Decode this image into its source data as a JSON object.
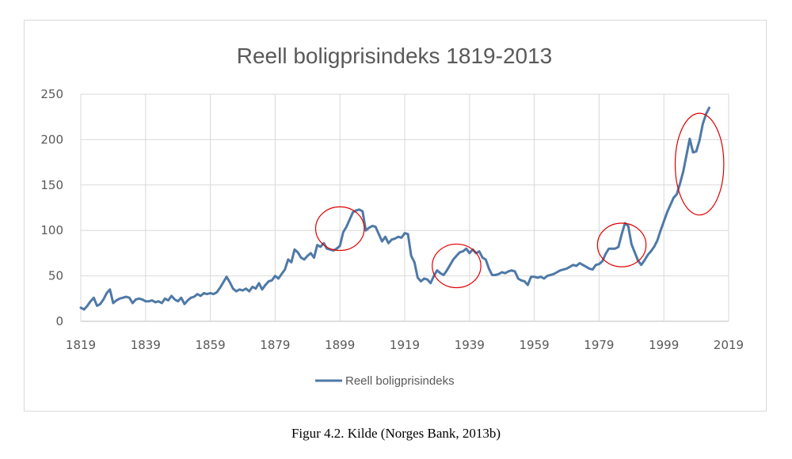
{
  "chart_data": {
    "type": "line",
    "title": "Reell boligprisindeks 1819-2013",
    "xlabel": "",
    "ylabel": "",
    "xlim": [
      1819,
      2019
    ],
    "ylim": [
      0,
      250
    ],
    "x_ticks": [
      "1819",
      "1839",
      "1859",
      "1879",
      "1899",
      "1919",
      "1939",
      "1959",
      "1979",
      "1999",
      "2019"
    ],
    "y_ticks": [
      "0",
      "50",
      "100",
      "150",
      "200",
      "250"
    ],
    "grid": true,
    "legend_position": "bottom",
    "series": [
      {
        "name": "Reell boligprisindeks",
        "color": "#4e79a7",
        "points": [
          [
            1819,
            15
          ],
          [
            1820,
            13
          ],
          [
            1821,
            17
          ],
          [
            1822,
            22
          ],
          [
            1823,
            26
          ],
          [
            1824,
            17
          ],
          [
            1825,
            19
          ],
          [
            1826,
            24
          ],
          [
            1827,
            31
          ],
          [
            1828,
            35
          ],
          [
            1829,
            20
          ],
          [
            1830,
            23
          ],
          [
            1831,
            25
          ],
          [
            1832,
            26
          ],
          [
            1833,
            27
          ],
          [
            1834,
            26
          ],
          [
            1835,
            20
          ],
          [
            1836,
            24
          ],
          [
            1837,
            25
          ],
          [
            1838,
            24
          ],
          [
            1839,
            22
          ],
          [
            1840,
            22
          ],
          [
            1841,
            23
          ],
          [
            1842,
            21
          ],
          [
            1843,
            22
          ],
          [
            1844,
            20
          ],
          [
            1845,
            25
          ],
          [
            1846,
            23
          ],
          [
            1847,
            28
          ],
          [
            1848,
            24
          ],
          [
            1849,
            22
          ],
          [
            1850,
            26
          ],
          [
            1851,
            19
          ],
          [
            1852,
            23
          ],
          [
            1853,
            26
          ],
          [
            1854,
            27
          ],
          [
            1855,
            30
          ],
          [
            1856,
            28
          ],
          [
            1857,
            31
          ],
          [
            1858,
            30
          ],
          [
            1859,
            31
          ],
          [
            1860,
            30
          ],
          [
            1861,
            32
          ],
          [
            1862,
            37
          ],
          [
            1863,
            43
          ],
          [
            1864,
            49
          ],
          [
            1865,
            43
          ],
          [
            1866,
            36
          ],
          [
            1867,
            33
          ],
          [
            1868,
            35
          ],
          [
            1869,
            34
          ],
          [
            1870,
            36
          ],
          [
            1871,
            33
          ],
          [
            1872,
            38
          ],
          [
            1873,
            36
          ],
          [
            1874,
            42
          ],
          [
            1875,
            35
          ],
          [
            1876,
            40
          ],
          [
            1877,
            44
          ],
          [
            1878,
            45
          ],
          [
            1879,
            50
          ],
          [
            1880,
            47
          ],
          [
            1881,
            52
          ],
          [
            1882,
            57
          ],
          [
            1883,
            68
          ],
          [
            1884,
            65
          ],
          [
            1885,
            79
          ],
          [
            1886,
            76
          ],
          [
            1887,
            70
          ],
          [
            1888,
            68
          ],
          [
            1889,
            72
          ],
          [
            1890,
            75
          ],
          [
            1891,
            70
          ],
          [
            1892,
            84
          ],
          [
            1893,
            82
          ],
          [
            1894,
            86
          ],
          [
            1895,
            80
          ],
          [
            1896,
            79
          ],
          [
            1897,
            78
          ],
          [
            1898,
            80
          ],
          [
            1899,
            83
          ],
          [
            1900,
            98
          ],
          [
            1901,
            104
          ],
          [
            1902,
            112
          ],
          [
            1903,
            120
          ],
          [
            1904,
            122
          ],
          [
            1905,
            123
          ],
          [
            1906,
            121
          ],
          [
            1907,
            100
          ],
          [
            1908,
            103
          ],
          [
            1909,
            105
          ],
          [
            1910,
            104
          ],
          [
            1911,
            96
          ],
          [
            1912,
            88
          ],
          [
            1913,
            93
          ],
          [
            1914,
            86
          ],
          [
            1915,
            90
          ],
          [
            1916,
            91
          ],
          [
            1917,
            93
          ],
          [
            1918,
            92
          ],
          [
            1919,
            97
          ],
          [
            1920,
            96
          ],
          [
            1921,
            72
          ],
          [
            1922,
            65
          ],
          [
            1923,
            48
          ],
          [
            1924,
            44
          ],
          [
            1925,
            47
          ],
          [
            1926,
            46
          ],
          [
            1927,
            42
          ],
          [
            1928,
            50
          ],
          [
            1929,
            56
          ],
          [
            1930,
            53
          ],
          [
            1931,
            51
          ],
          [
            1932,
            56
          ],
          [
            1933,
            62
          ],
          [
            1934,
            68
          ],
          [
            1935,
            72
          ],
          [
            1936,
            76
          ],
          [
            1937,
            77
          ],
          [
            1938,
            80
          ],
          [
            1939,
            75
          ],
          [
            1940,
            79
          ],
          [
            1941,
            75
          ],
          [
            1942,
            77
          ],
          [
            1943,
            70
          ],
          [
            1944,
            68
          ],
          [
            1945,
            58
          ],
          [
            1946,
            51
          ],
          [
            1947,
            51
          ],
          [
            1948,
            52
          ],
          [
            1949,
            54
          ],
          [
            1950,
            53
          ],
          [
            1951,
            55
          ],
          [
            1952,
            56
          ],
          [
            1953,
            55
          ],
          [
            1954,
            47
          ],
          [
            1955,
            45
          ],
          [
            1956,
            44
          ],
          [
            1957,
            40
          ],
          [
            1958,
            49
          ],
          [
            1959,
            49
          ],
          [
            1960,
            48
          ],
          [
            1961,
            49
          ],
          [
            1962,
            47
          ],
          [
            1963,
            50
          ],
          [
            1964,
            51
          ],
          [
            1965,
            52
          ],
          [
            1966,
            54
          ],
          [
            1967,
            56
          ],
          [
            1968,
            57
          ],
          [
            1969,
            58
          ],
          [
            1970,
            60
          ],
          [
            1971,
            62
          ],
          [
            1972,
            61
          ],
          [
            1973,
            64
          ],
          [
            1974,
            62
          ],
          [
            1975,
            60
          ],
          [
            1976,
            58
          ],
          [
            1977,
            57
          ],
          [
            1978,
            62
          ],
          [
            1979,
            63
          ],
          [
            1980,
            66
          ],
          [
            1981,
            74
          ],
          [
            1982,
            80
          ],
          [
            1983,
            80
          ],
          [
            1984,
            80
          ],
          [
            1985,
            82
          ],
          [
            1986,
            96
          ],
          [
            1987,
            108
          ],
          [
            1988,
            105
          ],
          [
            1989,
            85
          ],
          [
            1990,
            76
          ],
          [
            1991,
            67
          ],
          [
            1992,
            62
          ],
          [
            1993,
            67
          ],
          [
            1994,
            73
          ],
          [
            1995,
            77
          ],
          [
            1996,
            82
          ],
          [
            1997,
            89
          ],
          [
            1998,
            100
          ],
          [
            1999,
            110
          ],
          [
            2000,
            120
          ],
          [
            2001,
            128
          ],
          [
            2002,
            136
          ],
          [
            2003,
            140
          ],
          [
            2004,
            152
          ],
          [
            2005,
            165
          ],
          [
            2006,
            183
          ],
          [
            2007,
            201
          ],
          [
            2008,
            186
          ],
          [
            2009,
            187
          ],
          [
            2010,
            199
          ],
          [
            2011,
            217
          ],
          [
            2012,
            228
          ],
          [
            2013,
            235
          ]
        ]
      }
    ],
    "annotations": [
      {
        "type": "ellipse",
        "color": "#e00000",
        "x_center": 1899,
        "y_center": 102,
        "x_radius": 7.5,
        "y_radius": 24
      },
      {
        "type": "ellipse",
        "color": "#e00000",
        "x_center": 1935,
        "y_center": 61,
        "x_radius": 7.5,
        "y_radius": 24
      },
      {
        "type": "ellipse",
        "color": "#e00000",
        "x_center": 1986,
        "y_center": 84,
        "x_radius": 7.5,
        "y_radius": 24
      },
      {
        "type": "ellipse",
        "color": "#e00000",
        "x_center": 2010,
        "y_center": 173,
        "x_radius": 7.5,
        "y_radius": 56
      }
    ]
  },
  "caption": "Figur 4.2. Kilde (Norges Bank, 2013b)"
}
